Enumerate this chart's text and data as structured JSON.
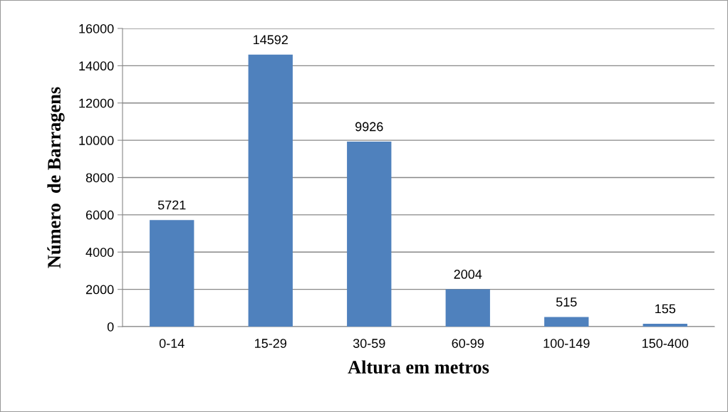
{
  "chart_data": {
    "type": "bar",
    "xlabel": "Altura em metros",
    "ylabel": "Número  de Barragens",
    "categories": [
      "0-14",
      "15-29",
      "30-59",
      "60-99",
      "100-149",
      "150-400"
    ],
    "values": [
      5721,
      14592,
      9926,
      2004,
      515,
      155
    ],
    "color": "#4f81bd",
    "ylim": [
      0,
      16000
    ],
    "yticks": [
      0,
      2000,
      4000,
      6000,
      8000,
      10000,
      12000,
      14000,
      16000
    ],
    "grid": "y",
    "data_labels": true
  }
}
